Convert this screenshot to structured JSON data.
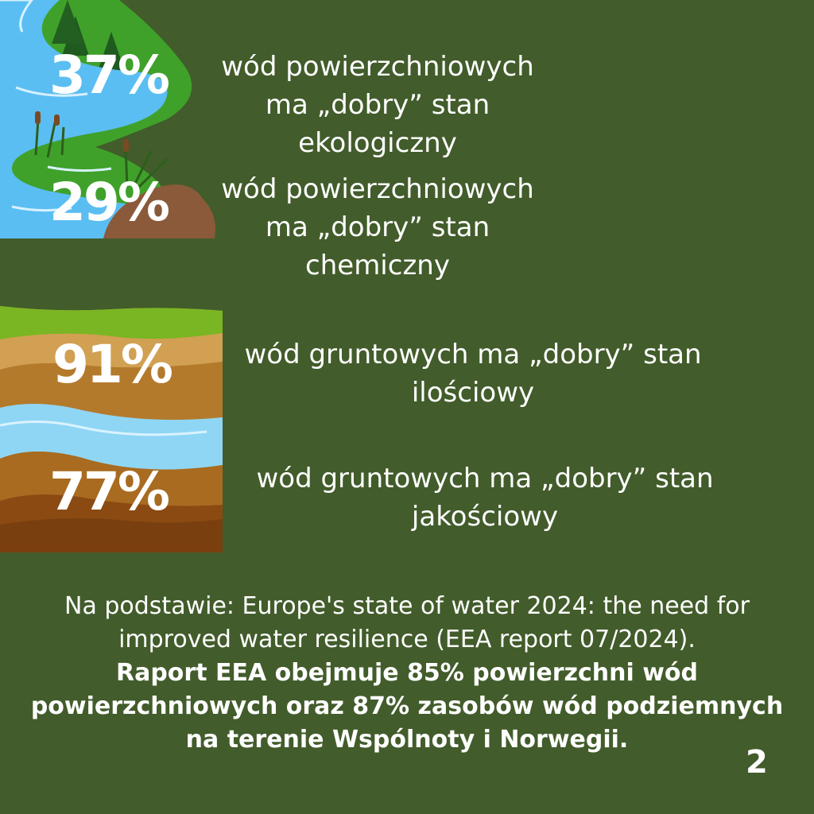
{
  "stats": [
    {
      "value": "37%",
      "text": "wód powierzchniowych ma „dobry” stan ekologiczny"
    },
    {
      "value": "29%",
      "text": "wód powierzchniowych ma „dobry” stan chemiczny"
    },
    {
      "value": "91%",
      "text": "wód gruntowych ma „dobry” stan ilościowy"
    },
    {
      "value": "77%",
      "text": "wód gruntowych ma „dobry” stan jakościowy"
    }
  ],
  "source": {
    "intro": "Na podstawie: Europe's state of water 2024: the need for improved water resilience (EEA report 07/2024).",
    "highlight": "Raport EEA obejmuje 85% powierzchni wód powierzchniowych oraz 87% zasobów wód podziemnych na terenie Wspólnoty i Norwegii."
  },
  "page_number": "2",
  "colors": {
    "background": "#425c2b",
    "river": "#5bbef2",
    "grass": "#3fa12a",
    "soil_light": "#c89445",
    "soil_dark": "#8a4a12",
    "groundwater": "#8fd6f5"
  }
}
